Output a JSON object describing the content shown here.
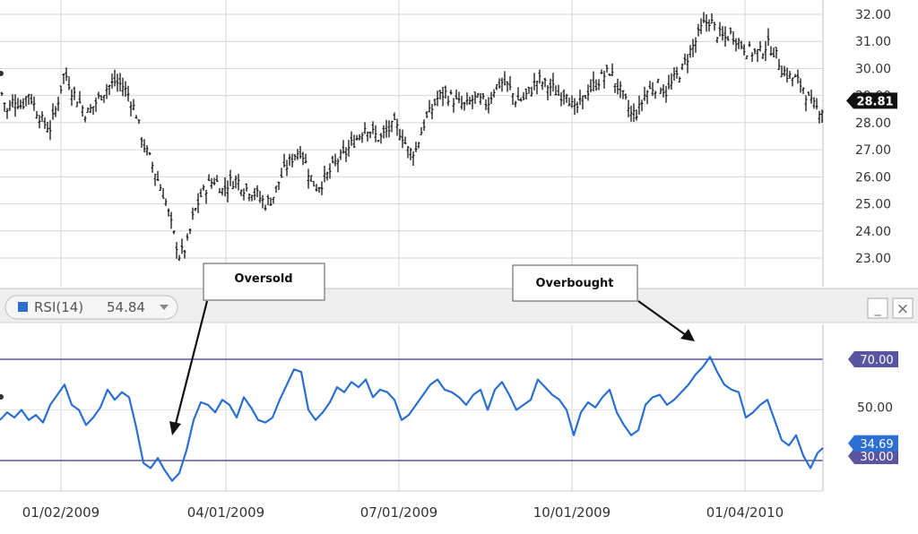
{
  "price_chart": {
    "current_price": "28.81",
    "y_ticks": [
      "32.00",
      "31.00",
      "30.00",
      "29.00",
      "28.00",
      "27.00",
      "26.00",
      "25.00",
      "24.00",
      "23.00"
    ]
  },
  "rsi_panel": {
    "legend_label": "RSI(14)",
    "legend_value": "54.84",
    "current_rsi": "34.69",
    "overbought_level": "70.00",
    "mid_level": "50.00",
    "oversold_level": "30.00",
    "minimize_symbol": "_",
    "close_symbol": "×"
  },
  "annotations": {
    "oversold": "Oversold",
    "overbought": "Overbought"
  },
  "x_ticks": [
    "01/02/2009",
    "04/01/2009",
    "07/01/2009",
    "10/01/2009",
    "01/04/2010"
  ],
  "colors": {
    "rsi_line": "#2a6fd1",
    "threshold_line": "#5a55a0",
    "price_bars": "#000000",
    "grid": "#d8d8d8",
    "badge_purple": "#5a55a0",
    "badge_blue": "#2a6fd1"
  },
  "chart_data": [
    {
      "type": "ohlc",
      "ylim": [
        22.5,
        32.2
      ],
      "price_series": [
        [
          0,
          29.3
        ],
        [
          8,
          28.4
        ],
        [
          16,
          28.9
        ],
        [
          24,
          28.6
        ],
        [
          32,
          29.1
        ],
        [
          40,
          28.5
        ],
        [
          48,
          28.0
        ],
        [
          56,
          27.8
        ],
        [
          64,
          28.7
        ],
        [
          72,
          29.9
        ],
        [
          80,
          29.2
        ],
        [
          88,
          28.8
        ],
        [
          96,
          28.3
        ],
        [
          104,
          28.6
        ],
        [
          112,
          29.0
        ],
        [
          120,
          29.3
        ],
        [
          128,
          29.5
        ],
        [
          136,
          29.4
        ],
        [
          144,
          29.0
        ],
        [
          152,
          28.3
        ],
        [
          160,
          27.2
        ],
        [
          168,
          26.6
        ],
        [
          176,
          25.9
        ],
        [
          184,
          25.2
        ],
        [
          192,
          24.1
        ],
        [
          200,
          23.1
        ],
        [
          208,
          23.4
        ],
        [
          216,
          24.6
        ],
        [
          224,
          25.3
        ],
        [
          232,
          25.7
        ],
        [
          240,
          25.9
        ],
        [
          248,
          25.5
        ],
        [
          256,
          25.8
        ],
        [
          264,
          25.9
        ],
        [
          272,
          25.6
        ],
        [
          280,
          25.5
        ],
        [
          288,
          25.3
        ],
        [
          296,
          25.0
        ],
        [
          304,
          25.2
        ],
        [
          312,
          25.9
        ],
        [
          320,
          26.4
        ],
        [
          328,
          26.8
        ],
        [
          336,
          27.0
        ],
        [
          344,
          26.2
        ],
        [
          352,
          25.6
        ],
        [
          360,
          25.8
        ],
        [
          368,
          26.2
        ],
        [
          376,
          26.6
        ],
        [
          384,
          26.8
        ],
        [
          392,
          27.2
        ],
        [
          400,
          27.5
        ],
        [
          408,
          27.9
        ],
        [
          416,
          27.6
        ],
        [
          424,
          27.4
        ],
        [
          432,
          27.7
        ],
        [
          440,
          27.9
        ],
        [
          448,
          27.6
        ],
        [
          456,
          26.9
        ],
        [
          464,
          27.0
        ],
        [
          472,
          27.9
        ],
        [
          480,
          28.4
        ],
        [
          488,
          28.9
        ],
        [
          496,
          29.1
        ],
        [
          504,
          28.9
        ],
        [
          512,
          28.7
        ],
        [
          520,
          28.6
        ],
        [
          528,
          28.9
        ],
        [
          536,
          28.8
        ],
        [
          544,
          28.7
        ],
        [
          552,
          29.3
        ],
        [
          560,
          29.5
        ],
        [
          568,
          29.3
        ],
        [
          576,
          28.8
        ],
        [
          584,
          28.9
        ],
        [
          592,
          29.2
        ],
        [
          600,
          29.6
        ],
        [
          608,
          29.4
        ],
        [
          616,
          29.3
        ],
        [
          624,
          29.0
        ],
        [
          632,
          29.2
        ],
        [
          640,
          28.4
        ],
        [
          648,
          28.7
        ],
        [
          656,
          29.2
        ],
        [
          664,
          29.4
        ],
        [
          672,
          29.7
        ],
        [
          680,
          29.9
        ],
        [
          688,
          29.4
        ],
        [
          696,
          28.9
        ],
        [
          704,
          28.3
        ],
        [
          712,
          28.4
        ],
        [
          720,
          29.1
        ],
        [
          728,
          29.3
        ],
        [
          736,
          29.4
        ],
        [
          744,
          29.1
        ],
        [
          752,
          29.6
        ],
        [
          760,
          29.9
        ],
        [
          768,
          30.5
        ],
        [
          776,
          31.0
        ],
        [
          784,
          31.6
        ],
        [
          792,
          31.8
        ],
        [
          800,
          31.3
        ],
        [
          808,
          31.1
        ],
        [
          816,
          31.3
        ],
        [
          824,
          31.0
        ],
        [
          832,
          30.7
        ],
        [
          840,
          30.6
        ],
        [
          848,
          30.6
        ],
        [
          856,
          30.9
        ],
        [
          864,
          30.6
        ],
        [
          872,
          30.0
        ],
        [
          880,
          29.7
        ],
        [
          888,
          29.6
        ],
        [
          896,
          29.3
        ],
        [
          904,
          28.7
        ],
        [
          912,
          28.5
        ],
        [
          918,
          28.5
        ]
      ]
    },
    {
      "type": "line",
      "ylim": [
        22,
        78
      ],
      "levels": [
        30,
        50,
        70
      ],
      "rsi_series": [
        [
          0,
          46
        ],
        [
          8,
          49
        ],
        [
          16,
          47
        ],
        [
          24,
          50
        ],
        [
          32,
          46
        ],
        [
          40,
          48
        ],
        [
          48,
          45
        ],
        [
          56,
          52
        ],
        [
          64,
          56
        ],
        [
          72,
          60
        ],
        [
          80,
          52
        ],
        [
          88,
          50
        ],
        [
          96,
          44
        ],
        [
          104,
          47
        ],
        [
          112,
          51
        ],
        [
          120,
          58
        ],
        [
          128,
          54
        ],
        [
          136,
          57
        ],
        [
          144,
          55
        ],
        [
          152,
          43
        ],
        [
          160,
          29
        ],
        [
          168,
          27
        ],
        [
          176,
          31
        ],
        [
          184,
          26
        ],
        [
          192,
          22
        ],
        [
          200,
          25
        ],
        [
          208,
          34
        ],
        [
          216,
          46
        ],
        [
          224,
          53
        ],
        [
          232,
          52
        ],
        [
          240,
          49
        ],
        [
          248,
          54
        ],
        [
          256,
          52
        ],
        [
          264,
          47
        ],
        [
          272,
          55
        ],
        [
          280,
          51
        ],
        [
          288,
          46
        ],
        [
          296,
          45
        ],
        [
          304,
          47
        ],
        [
          312,
          54
        ],
        [
          320,
          60
        ],
        [
          328,
          66
        ],
        [
          336,
          65
        ],
        [
          344,
          50
        ],
        [
          352,
          46
        ],
        [
          360,
          49
        ],
        [
          368,
          53
        ],
        [
          376,
          59
        ],
        [
          384,
          57
        ],
        [
          392,
          61
        ],
        [
          400,
          59
        ],
        [
          408,
          62
        ],
        [
          416,
          55
        ],
        [
          424,
          58
        ],
        [
          432,
          57
        ],
        [
          440,
          54
        ],
        [
          448,
          46
        ],
        [
          456,
          48
        ],
        [
          464,
          52
        ],
        [
          472,
          56
        ],
        [
          480,
          60
        ],
        [
          488,
          62
        ],
        [
          496,
          58
        ],
        [
          504,
          57
        ],
        [
          512,
          55
        ],
        [
          520,
          52
        ],
        [
          528,
          56
        ],
        [
          536,
          58
        ],
        [
          544,
          50
        ],
        [
          552,
          58
        ],
        [
          560,
          61
        ],
        [
          568,
          56
        ],
        [
          576,
          50
        ],
        [
          584,
          52
        ],
        [
          592,
          54
        ],
        [
          600,
          62
        ],
        [
          608,
          59
        ],
        [
          616,
          56
        ],
        [
          624,
          54
        ],
        [
          632,
          50
        ],
        [
          640,
          40
        ],
        [
          648,
          49
        ],
        [
          656,
          53
        ],
        [
          664,
          51
        ],
        [
          672,
          55
        ],
        [
          680,
          58
        ],
        [
          688,
          49
        ],
        [
          696,
          44
        ],
        [
          704,
          40
        ],
        [
          712,
          42
        ],
        [
          720,
          52
        ],
        [
          728,
          55
        ],
        [
          736,
          56
        ],
        [
          744,
          52
        ],
        [
          752,
          54
        ],
        [
          760,
          57
        ],
        [
          768,
          60
        ],
        [
          776,
          64
        ],
        [
          784,
          67
        ],
        [
          792,
          71
        ],
        [
          800,
          65
        ],
        [
          808,
          60
        ],
        [
          816,
          58
        ],
        [
          824,
          57
        ],
        [
          832,
          47
        ],
        [
          840,
          49
        ],
        [
          848,
          52
        ],
        [
          856,
          54
        ],
        [
          864,
          46
        ],
        [
          872,
          38
        ],
        [
          880,
          36
        ],
        [
          888,
          40
        ],
        [
          896,
          32
        ],
        [
          904,
          27
        ],
        [
          912,
          33
        ],
        [
          918,
          35
        ]
      ]
    }
  ]
}
